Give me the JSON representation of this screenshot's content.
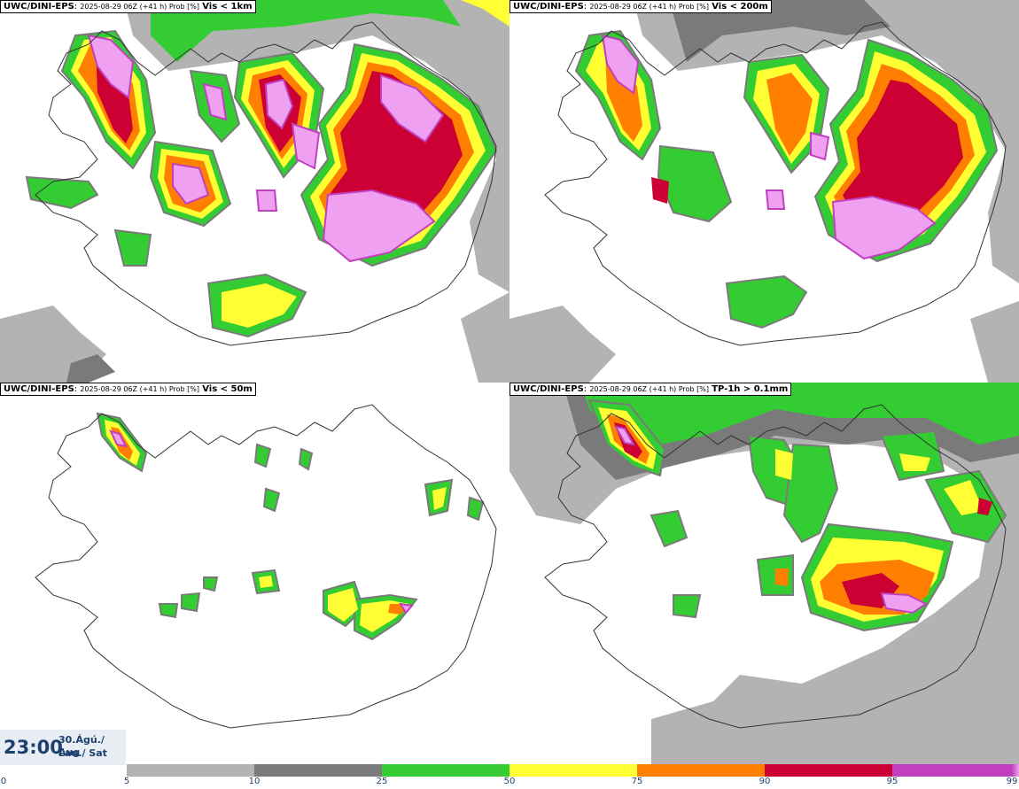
{
  "panels": [
    {
      "model": "UWC/DINI-EPS",
      "meta": "2025-08-29 06Z (+41 h) Prob [%]",
      "field": "Vis < 1km"
    },
    {
      "model": "UWC/DINI-EPS",
      "meta": "2025-08-29 06Z (+41 h) Prob [%]",
      "field": "Vis < 200m"
    },
    {
      "model": "UWC/DINI-EPS",
      "meta": "2025-08-29 06Z (+41 h) Prob [%]",
      "field": "Vis < 50m"
    },
    {
      "model": "UWC/DINI-EPS",
      "meta": "2025-08-29 06Z (+41 h) Prob [%]",
      "field": "TP-1h > 0.1mm"
    }
  ],
  "valid_time": {
    "time": "23:00",
    "date": "30.Ágú./ Aug",
    "day": "Lau./ Sat"
  },
  "colorbar": {
    "ticks": [
      "0",
      "5",
      "10",
      "25",
      "50",
      "75",
      "90",
      "95",
      "99"
    ],
    "colors": [
      "#ffffff",
      "#b3b3b3",
      "#7a7a7a",
      "#33cc33",
      "#ffff33",
      "#ff8000",
      "#cc0033",
      "#c040c0",
      "#f0a0f0"
    ]
  },
  "colors": {
    "light_gray": "#b3b3b3",
    "dark_gray": "#7a7a7a",
    "green": "#33cc33",
    "yellow": "#ffff33",
    "orange": "#ff8000",
    "red": "#cc0033",
    "magenta": "#c040c0",
    "pink": "#f0a0f0"
  }
}
